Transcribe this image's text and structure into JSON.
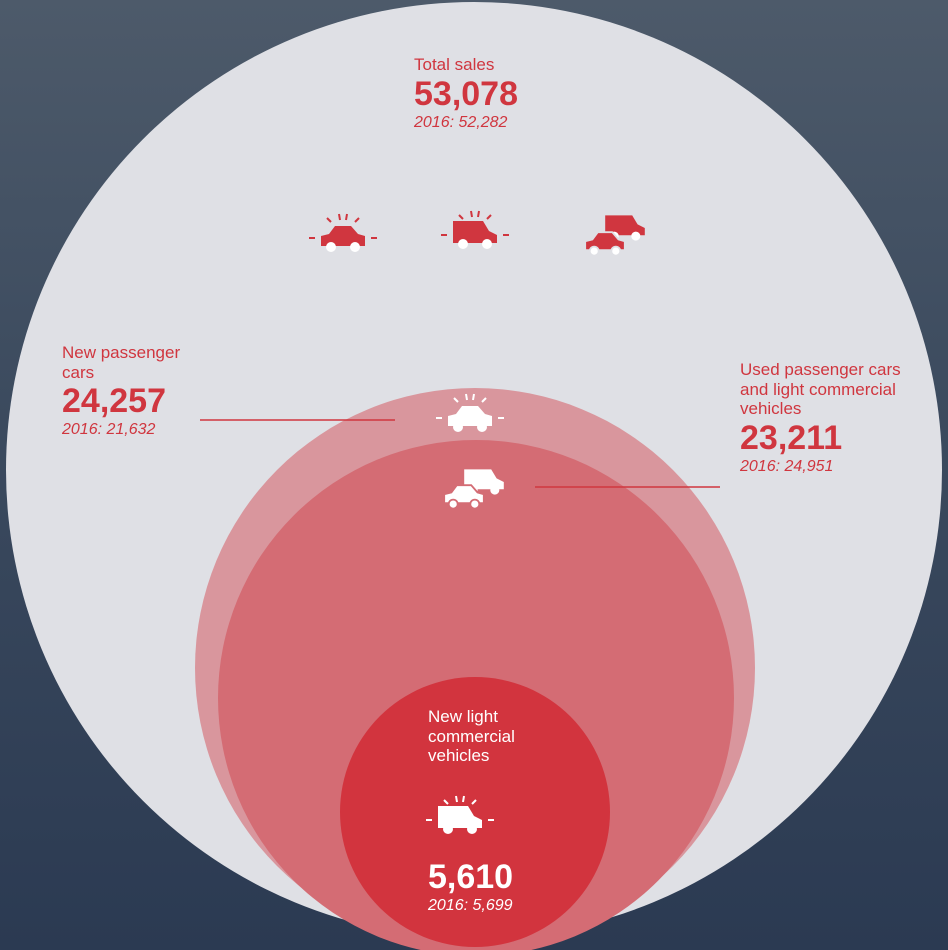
{
  "total": {
    "label": "Total sales",
    "value": "53,078",
    "previous": "2016: 52,282"
  },
  "new_passenger_cars": {
    "label": "New passenger cars",
    "value": "24,257",
    "previous": "2016: 21,632"
  },
  "used_vehicles": {
    "label": "Used passenger cars and light commercial vehicles",
    "value": "23,211",
    "previous": "2016: 24,951"
  },
  "new_light_commercial": {
    "label": "New light commercial vehicles",
    "value": "5,610",
    "previous": "2016: 5,699"
  }
}
